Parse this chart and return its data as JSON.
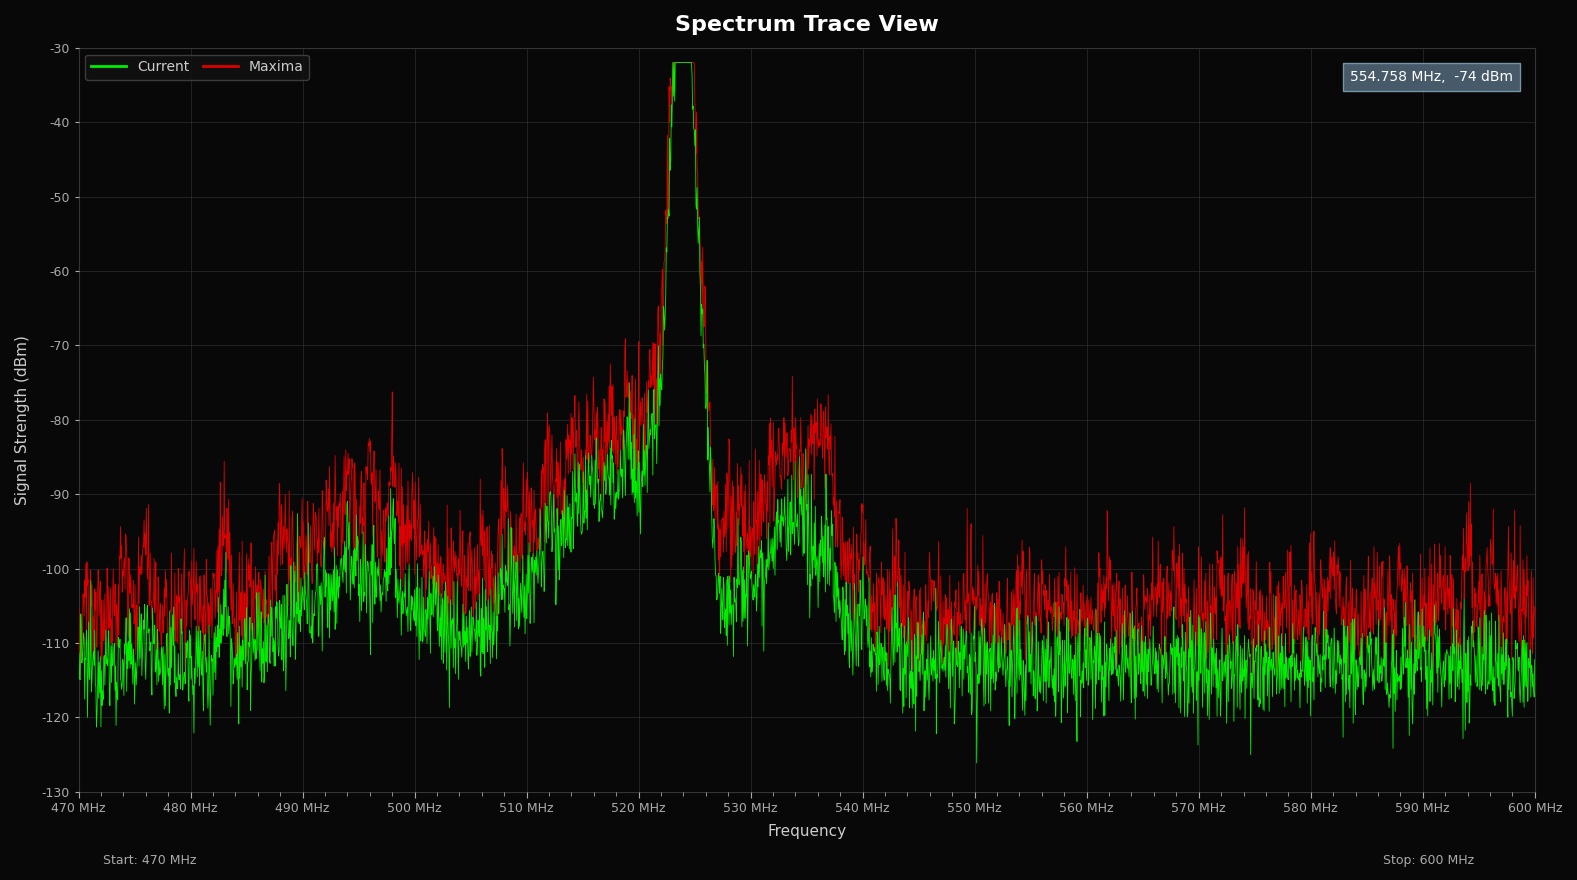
{
  "title": "Spectrum Trace View",
  "xlabel": "Frequency",
  "ylabel": "Signal Strength (dBm)",
  "freq_start": 470,
  "freq_stop": 600,
  "ylim": [
    -130,
    -30
  ],
  "yticks": [
    -130,
    -120,
    -110,
    -100,
    -90,
    -80,
    -70,
    -60,
    -50,
    -40,
    -30
  ],
  "xtick_labels": [
    "470 MHz",
    "480 MHz",
    "490 MHz",
    "500 MHz",
    "510 MHz",
    "520 MHz",
    "530 MHz",
    "540 MHz",
    "550 MHz",
    "560 MHz",
    "570 MHz",
    "580 MHz",
    "590 MHz",
    "600 MHz"
  ],
  "xtick_freqs": [
    470,
    480,
    490,
    500,
    510,
    520,
    530,
    540,
    550,
    560,
    570,
    580,
    590,
    600
  ],
  "background_color": "#080808",
  "grid_color": "#353535",
  "current_color": "#00ee00",
  "maxima_color": "#dd0000",
  "title_color": "#ffffff",
  "label_color": "#cccccc",
  "tick_color": "#aaaaaa",
  "annotation_text": "554.758 MHz,  -74 dBm",
  "annotation_bg": "#4a5f70",
  "annotation_edge": "#7a9aaa",
  "start_label": "Start: 470 MHz",
  "stop_label": "Stop: 600 MHz",
  "legend_current": "Current",
  "legend_maxima": "Maxima",
  "seed": 12345,
  "num_points": 2600
}
